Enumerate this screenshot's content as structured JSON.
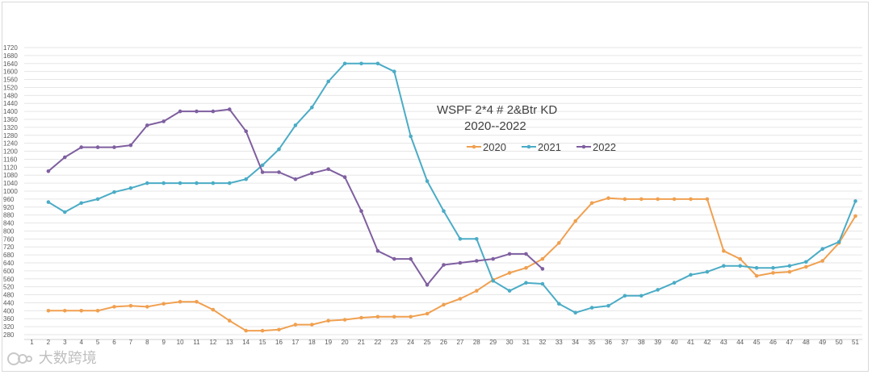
{
  "chart_data": {
    "type": "line",
    "title": "WSPF 2*4 # 2&Btr KD",
    "subtitle": "2020--2022",
    "x": [
      1,
      2,
      3,
      4,
      5,
      6,
      7,
      8,
      9,
      10,
      11,
      12,
      13,
      14,
      15,
      16,
      17,
      18,
      19,
      20,
      21,
      22,
      23,
      24,
      25,
      26,
      27,
      28,
      29,
      30,
      31,
      32,
      33,
      34,
      35,
      36,
      37,
      38,
      39,
      40,
      41,
      42,
      43,
      44,
      45,
      46,
      47,
      48,
      49,
      50,
      51
    ],
    "ylim": [
      280,
      1720
    ],
    "ytick_step": 40,
    "grid": true,
    "legend_position": "top-center",
    "series": [
      {
        "name": "2020",
        "color": "#f0a050",
        "x": [
          2,
          3,
          4,
          5,
          6,
          7,
          8,
          9,
          10,
          11,
          12,
          13,
          14,
          15,
          16,
          17,
          18,
          19,
          20,
          21,
          22,
          23,
          24,
          25,
          26,
          27,
          28,
          29,
          30,
          31,
          32,
          33,
          34,
          35,
          36,
          37,
          38,
          39,
          40,
          41,
          42,
          43,
          44,
          45,
          46,
          47,
          48,
          49,
          50,
          51
        ],
        "values": [
          400,
          400,
          400,
          400,
          420,
          425,
          420,
          435,
          445,
          445,
          405,
          350,
          300,
          300,
          305,
          330,
          330,
          350,
          355,
          365,
          370,
          370,
          370,
          385,
          430,
          460,
          500,
          555,
          590,
          615,
          660,
          740,
          850,
          940,
          965,
          960,
          960,
          960,
          960,
          960,
          960,
          700,
          660,
          575,
          590,
          595,
          620,
          650,
          740,
          875
        ]
      },
      {
        "name": "2021",
        "color": "#4bacc6",
        "x": [
          2,
          3,
          4,
          5,
          6,
          7,
          8,
          9,
          10,
          11,
          12,
          13,
          14,
          15,
          16,
          17,
          18,
          19,
          20,
          21,
          22,
          23,
          24,
          25,
          26,
          27,
          28,
          29,
          30,
          31,
          32,
          33,
          34,
          35,
          36,
          37,
          38,
          39,
          40,
          41,
          42,
          43,
          44,
          45,
          46,
          47,
          48,
          49,
          50,
          51
        ],
        "values": [
          945,
          895,
          940,
          960,
          995,
          1015,
          1040,
          1040,
          1040,
          1040,
          1040,
          1040,
          1060,
          1130,
          1210,
          1330,
          1420,
          1550,
          1640,
          1640,
          1640,
          1600,
          1275,
          1050,
          900,
          760,
          760,
          550,
          500,
          540,
          535,
          435,
          390,
          415,
          425,
          475,
          475,
          505,
          540,
          580,
          595,
          625,
          625,
          615,
          615,
          625,
          645,
          710,
          745,
          950
        ]
      },
      {
        "name": "2022",
        "color": "#7f5fa0",
        "x": [
          2,
          3,
          4,
          5,
          6,
          7,
          8,
          9,
          10,
          11,
          12,
          13,
          14,
          15,
          16,
          17,
          18,
          19,
          20,
          21,
          22,
          23,
          24,
          25,
          26,
          27,
          28,
          29,
          30,
          31,
          32
        ],
        "values": [
          1100,
          1170,
          1220,
          1220,
          1220,
          1230,
          1330,
          1350,
          1400,
          1400,
          1400,
          1410,
          1300,
          1095,
          1095,
          1060,
          1090,
          1110,
          1070,
          900,
          700,
          660,
          660,
          530,
          630,
          640,
          650,
          660,
          685,
          685,
          610
        ]
      }
    ]
  },
  "watermark": {
    "text": "大数跨境"
  }
}
